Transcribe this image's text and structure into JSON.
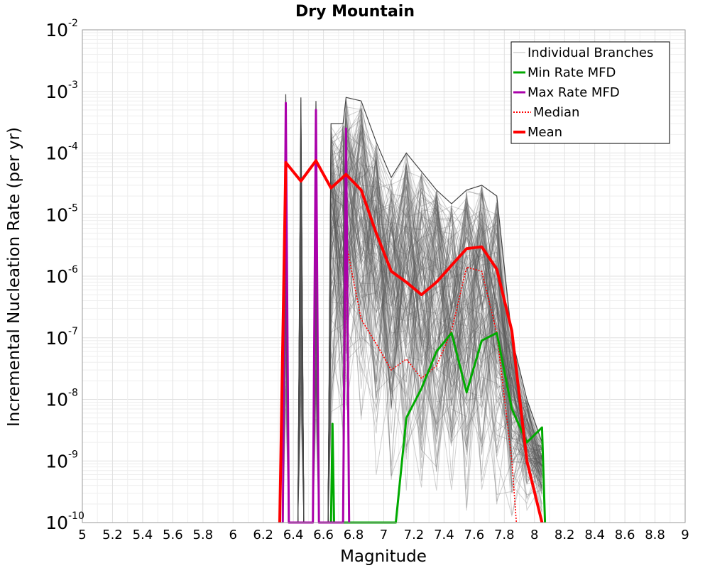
{
  "chart_data": {
    "type": "line",
    "title": "Dry Mountain",
    "xlabel": "Magnitude",
    "ylabel": "Incremental Nucleation Rate (per yr)",
    "xlim": [
      5,
      9
    ],
    "ylim": [
      1e-10,
      0.01
    ],
    "yscale": "log",
    "grid": true,
    "legend_position": "top-right",
    "x_ticks": [
      "5",
      "5.2",
      "5.4",
      "5.6",
      "5.8",
      "6",
      "6.2",
      "6.4",
      "6.6",
      "6.8",
      "7",
      "7.2",
      "7.4",
      "7.6",
      "7.8",
      "8",
      "8.2",
      "8.4",
      "8.6",
      "8.8",
      "9"
    ],
    "y_ticks": [
      {
        "base": "10",
        "exp": "-10",
        "value": 1e-10
      },
      {
        "base": "10",
        "exp": "-9",
        "value": 1e-09
      },
      {
        "base": "10",
        "exp": "-8",
        "value": 1e-08
      },
      {
        "base": "10",
        "exp": "-7",
        "value": 1e-07
      },
      {
        "base": "10",
        "exp": "-6",
        "value": 1e-06
      },
      {
        "base": "10",
        "exp": "-5",
        "value": 1e-05
      },
      {
        "base": "10",
        "exp": "-4",
        "value": 0.0001
      },
      {
        "base": "10",
        "exp": "-3",
        "value": 0.001
      },
      {
        "base": "10",
        "exp": "-2",
        "value": 0.01
      }
    ],
    "series": [
      {
        "name": "Min Rate MFD",
        "color": "#00aa00",
        "style": "solid",
        "x": [
          6.65,
          6.65,
          6.66,
          6.67,
          7.08,
          7.15,
          7.25,
          7.35,
          7.45,
          7.55,
          7.65,
          7.75,
          7.85,
          7.95,
          8.05,
          8.07
        ],
        "y": [
          1e-10,
          1e-10,
          4e-09,
          1e-10,
          1e-10,
          5e-09,
          1.5e-08,
          6e-08,
          1.2e-07,
          1.3e-08,
          9e-08,
          1.2e-07,
          7e-09,
          2e-09,
          3.5e-09,
          1e-10
        ]
      },
      {
        "name": "Max Rate MFD",
        "color": "#aa00aa",
        "style": "solid",
        "x": [
          6.33,
          6.35,
          6.37,
          6.43,
          6.45,
          6.47,
          6.53,
          6.55,
          6.57,
          6.73,
          6.75,
          6.77
        ],
        "y": [
          1e-10,
          0.00065,
          1e-10,
          1e-10,
          1e-10,
          1e-10,
          1e-10,
          0.0005,
          1e-10,
          1e-10,
          0.00025,
          1e-10
        ]
      },
      {
        "name": "Median",
        "color": "#ff0000",
        "style": "dotted",
        "x": [
          6.33,
          6.35,
          6.37,
          6.53,
          6.55,
          6.57,
          6.73,
          6.75,
          6.85,
          6.95,
          7.05,
          7.15,
          7.25,
          7.35,
          7.45,
          7.55,
          7.65,
          7.75,
          7.85,
          7.88
        ],
        "y": [
          1e-10,
          0.0001,
          1e-10,
          1e-10,
          0.0001,
          1e-10,
          1e-10,
          3.5e-06,
          2e-07,
          8e-08,
          3e-08,
          4.5e-08,
          2.2e-08,
          3.5e-08,
          1.3e-07,
          1.4e-06,
          1.2e-06,
          1.2e-07,
          1e-09,
          1e-10
        ]
      },
      {
        "name": "Mean",
        "color": "#ff0000",
        "style": "solid",
        "x": [
          6.31,
          6.35,
          6.45,
          6.55,
          6.65,
          6.75,
          6.85,
          6.95,
          7.05,
          7.15,
          7.25,
          7.35,
          7.45,
          7.55,
          7.65,
          7.75,
          7.85,
          7.95,
          8.05
        ],
        "y": [
          1e-10,
          7e-05,
          3.5e-05,
          7.5e-05,
          2.7e-05,
          4.5e-05,
          2.5e-05,
          5e-06,
          1.2e-06,
          8e-07,
          5e-07,
          8e-07,
          1.5e-06,
          2.8e-06,
          3e-06,
          1.3e-06,
          1.3e-07,
          1e-09,
          1e-10
        ]
      }
    ],
    "envelope": {
      "name": "Individual Branches",
      "color": "#555555",
      "x": [
        6.3,
        6.33,
        6.35,
        6.37,
        6.43,
        6.45,
        6.47,
        6.53,
        6.55,
        6.57,
        6.63,
        6.65,
        6.73,
        6.75,
        6.85,
        6.95,
        7.05,
        7.15,
        7.25,
        7.35,
        7.45,
        7.55,
        7.65,
        7.75,
        7.85,
        7.95,
        8.05
      ],
      "y_max": [
        1e-10,
        1e-10,
        0.0009,
        1e-10,
        1e-10,
        0.0008,
        1e-10,
        1e-10,
        0.0007,
        1e-10,
        1e-10,
        0.0003,
        0.0003,
        0.0008,
        0.0007,
        0.00015,
        4e-05,
        0.0001,
        5e-05,
        2.5e-05,
        1.5e-05,
        2.5e-05,
        3e-05,
        2e-05,
        1e-07,
        1e-08,
        2e-09
      ]
    },
    "legend": [
      "Individual Branches",
      "Min Rate MFD",
      "Max Rate MFD",
      "Median",
      "Mean"
    ]
  }
}
